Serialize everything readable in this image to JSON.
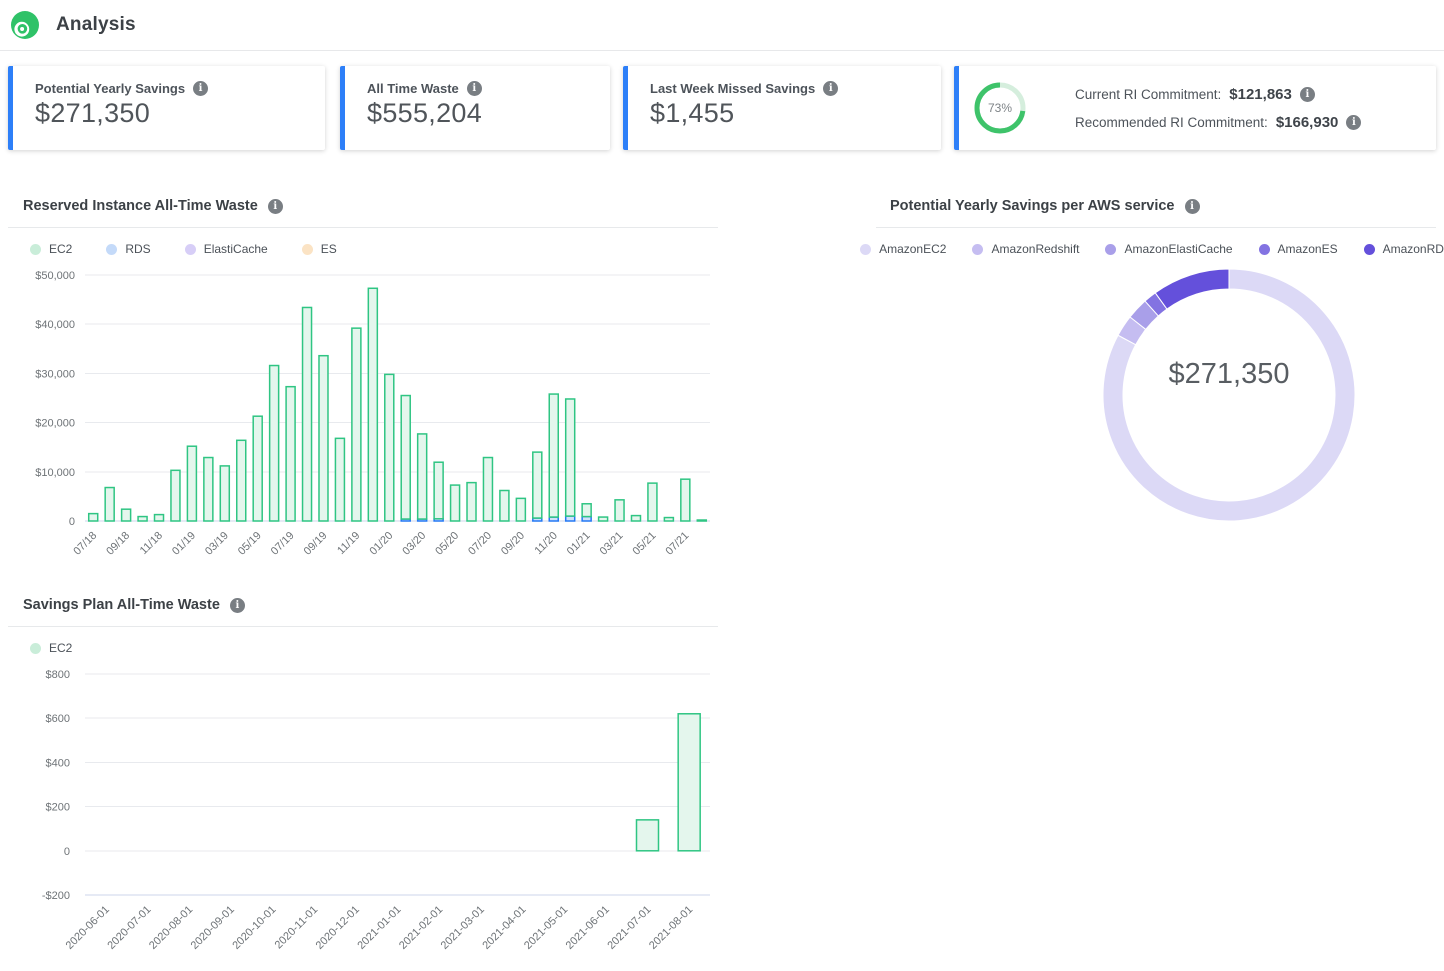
{
  "header": {
    "title": "Analysis",
    "logo_color": "#2fc268"
  },
  "cards": [
    {
      "label": "Potential Yearly Savings",
      "value": "$271,350"
    },
    {
      "label": "All Time Waste",
      "value": "$555,204"
    },
    {
      "label": "Last Week Missed Savings",
      "value": "$1,455"
    }
  ],
  "commitment_card": {
    "gauge_percent": 73,
    "gauge_label": "73%",
    "gauge_color": "#3ec36a",
    "gauge_track_color": "#d5eedd",
    "rows": [
      {
        "label": "Current RI Commitment:",
        "value": "$121,863"
      },
      {
        "label": "Recommended RI Commitment:",
        "value": "$166,930"
      }
    ]
  },
  "sections": {
    "ri_waste": {
      "title": "Reserved Instance All-Time Waste",
      "legend": [
        {
          "label": "EC2",
          "color": "#c9edd9"
        },
        {
          "label": "RDS",
          "color": "#c4daf9"
        },
        {
          "label": "ElastiCache",
          "color": "#d7cef7"
        },
        {
          "label": "ES",
          "color": "#fbe3c4"
        }
      ]
    },
    "savings_per_service": {
      "title": "Potential Yearly Savings per AWS service",
      "center_label": "$271,350",
      "legend": [
        {
          "label": "AmazonEC2",
          "color": "#dcd9f6"
        },
        {
          "label": "AmazonRedshift",
          "color": "#c5bdf1"
        },
        {
          "label": "AmazonElastiCache",
          "color": "#a99fe9"
        },
        {
          "label": "AmazonES",
          "color": "#8373e2"
        },
        {
          "label": "AmazonRDS",
          "color": "#6450db"
        }
      ]
    },
    "sp_waste": {
      "title": "Savings Plan All-Time Waste",
      "legend": [
        {
          "label": "EC2",
          "color": "#c9edd9"
        }
      ]
    }
  },
  "chart_data": [
    {
      "id": "ri-waste",
      "type": "bar",
      "stacked": true,
      "title": "Reserved Instance All-Time Waste",
      "ylim": [
        0,
        50000
      ],
      "yticks": [
        {
          "v": 0,
          "label": "0"
        },
        {
          "v": 10000,
          "label": "$10,000"
        },
        {
          "v": 20000,
          "label": "$20,000"
        },
        {
          "v": 30000,
          "label": "$30,000"
        },
        {
          "v": 40000,
          "label": "$40,000"
        },
        {
          "v": 50000,
          "label": "$50,000"
        }
      ],
      "x_label_every": 2,
      "categories": [
        "07/18",
        "08/18",
        "09/18",
        "10/18",
        "11/18",
        "12/18",
        "01/19",
        "02/19",
        "03/19",
        "04/19",
        "05/19",
        "06/19",
        "07/19",
        "08/19",
        "09/19",
        "10/19",
        "11/19",
        "12/19",
        "01/20",
        "02/20",
        "03/20",
        "04/20",
        "05/20",
        "06/20",
        "07/20",
        "08/20",
        "09/20",
        "10/20",
        "11/20",
        "12/20",
        "01/21",
        "02/21",
        "03/21",
        "04/21",
        "05/21",
        "06/21",
        "07/21",
        "08/21"
      ],
      "series": [
        {
          "name": "RDS",
          "stroke": "#2478f4",
          "fill": "#d0e1fb",
          "values": [
            0,
            0,
            0,
            0,
            0,
            0,
            0,
            0,
            0,
            0,
            0,
            0,
            0,
            0,
            0,
            0,
            0,
            0,
            0,
            400,
            400,
            450,
            0,
            0,
            0,
            0,
            0,
            600,
            800,
            1000,
            900,
            0,
            0,
            0,
            0,
            0,
            0,
            0
          ]
        },
        {
          "name": "EC2",
          "stroke": "#2fc583",
          "fill": "#e4f6ed",
          "values": [
            1500,
            6800,
            2400,
            900,
            1300,
            10300,
            15200,
            12900,
            11200,
            16400,
            21300,
            31600,
            27300,
            43400,
            33600,
            16800,
            39200,
            47300,
            29800,
            25100,
            17300,
            11500,
            7300,
            7800,
            12900,
            6200,
            4600,
            13400,
            25000,
            23800,
            2600,
            800,
            4300,
            1100,
            7700,
            700,
            8500,
            200
          ]
        },
        {
          "name": "ElastiCache",
          "stroke": "#9b8cf0",
          "fill": "#e9e4fb",
          "values": [
            0,
            0,
            0,
            0,
            0,
            0,
            0,
            0,
            0,
            0,
            0,
            0,
            0,
            0,
            0,
            0,
            0,
            0,
            0,
            0,
            0,
            0,
            0,
            0,
            0,
            0,
            0,
            0,
            0,
            0,
            0,
            0,
            0,
            0,
            0,
            0,
            0,
            0
          ]
        },
        {
          "name": "ES",
          "stroke": "#f0b155",
          "fill": "#fdf1dd",
          "values": [
            0,
            0,
            0,
            0,
            0,
            0,
            0,
            0,
            0,
            0,
            0,
            0,
            0,
            0,
            0,
            0,
            0,
            0,
            0,
            0,
            0,
            0,
            0,
            0,
            0,
            0,
            0,
            0,
            0,
            0,
            0,
            0,
            0,
            0,
            0,
            0,
            0,
            0
          ]
        }
      ]
    },
    {
      "id": "savings-per-service",
      "type": "pie",
      "donut": true,
      "title": "Potential Yearly Savings per AWS service",
      "center_label": "$271,350",
      "total": 271350,
      "slices": [
        {
          "name": "AmazonEC2",
          "value": 224850,
          "color": "#dcd9f6"
        },
        {
          "name": "AmazonRedshift",
          "value": 7500,
          "color": "#c5bdf1"
        },
        {
          "name": "AmazonElastiCache",
          "value": 7500,
          "color": "#a99fe9"
        },
        {
          "name": "AmazonES",
          "value": 4500,
          "color": "#8373e2"
        },
        {
          "name": "AmazonRDS",
          "value": 27000,
          "color": "#6450db"
        }
      ]
    },
    {
      "id": "sp-waste",
      "type": "bar",
      "stacked": false,
      "title": "Savings Plan All-Time Waste",
      "ylim": [
        -200,
        800
      ],
      "yticks": [
        {
          "v": -200,
          "label": "-$200"
        },
        {
          "v": 0,
          "label": "0"
        },
        {
          "v": 200,
          "label": "$200"
        },
        {
          "v": 400,
          "label": "$400"
        },
        {
          "v": 600,
          "label": "$600"
        },
        {
          "v": 800,
          "label": "$800"
        }
      ],
      "x_label_every": 1,
      "categories": [
        "2020-06-01",
        "2020-07-01",
        "2020-08-01",
        "2020-09-01",
        "2020-10-01",
        "2020-11-01",
        "2020-12-01",
        "2021-01-01",
        "2021-02-01",
        "2021-03-01",
        "2021-04-01",
        "2021-05-01",
        "2021-06-01",
        "2021-07-01",
        "2021-08-01"
      ],
      "series": [
        {
          "name": "EC2",
          "stroke": "#2fc583",
          "fill": "#e4f6ed",
          "values": [
            0,
            0,
            0,
            0,
            0,
            0,
            0,
            0,
            0,
            0,
            0,
            0,
            0,
            140,
            620
          ]
        }
      ]
    }
  ]
}
